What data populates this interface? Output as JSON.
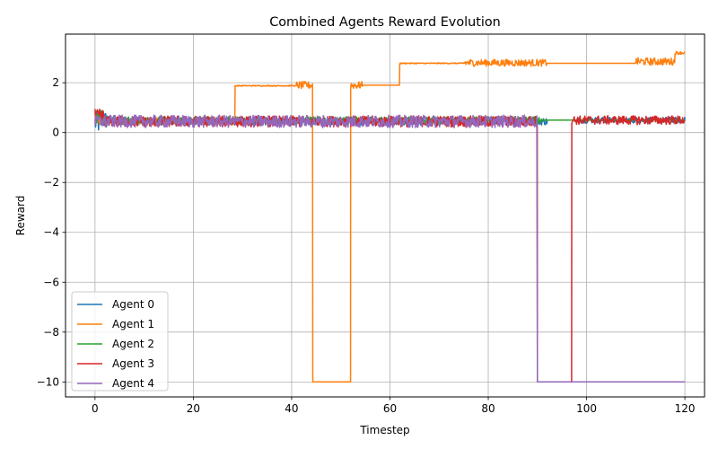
{
  "chart_data": {
    "type": "line",
    "title": "Combined Agents Reward Evolution",
    "xlabel": "Timestep",
    "ylabel": "Reward",
    "xlim": [
      -6,
      124
    ],
    "ylim": [
      -10.6,
      3.95
    ],
    "xticks": [
      0,
      20,
      40,
      60,
      80,
      100,
      120
    ],
    "yticks": [
      -10,
      -8,
      -6,
      -4,
      -2,
      0,
      2
    ],
    "ytick_labels": [
      "−10",
      "−8",
      "−6",
      "−4",
      "−2",
      "0",
      "2"
    ],
    "grid": true,
    "legend_position": "lower-left",
    "series": [
      {
        "name": "Agent 0",
        "color": "#1f77b4",
        "segments": [
          {
            "x0": 0,
            "x1": 1,
            "base": 0.4,
            "noise": 0.45
          },
          {
            "x0": 1,
            "x1": 3,
            "base": 0.5,
            "noise": 0.35
          },
          {
            "x0": 3,
            "x1": 92,
            "base": 0.45,
            "noise": 0.15
          },
          {
            "x0": 92,
            "x1": 98,
            "base": 0.5,
            "noise": 0.0
          },
          {
            "x0": 98,
            "x1": 120,
            "base": 0.5,
            "noise": 0.12
          }
        ]
      },
      {
        "name": "Agent 1",
        "color": "#ff7f0e",
        "segments": [
          {
            "x0": 0,
            "x1": 28.5,
            "base": 0.45,
            "noise": 0.15
          },
          {
            "x0": 28.5,
            "x1": 41,
            "base": 1.88,
            "noise": 0.02
          },
          {
            "x0": 41,
            "x1": 44.3,
            "base": 1.9,
            "noise": 0.15
          },
          {
            "x0": 44.3,
            "x1": 52,
            "base": -10.0,
            "noise": 0.0
          },
          {
            "x0": 52,
            "x1": 54.5,
            "base": 1.9,
            "noise": 0.15
          },
          {
            "x0": 54.5,
            "x1": 62,
            "base": 1.9,
            "noise": 0.0
          },
          {
            "x0": 62,
            "x1": 75,
            "base": 2.78,
            "noise": 0.02
          },
          {
            "x0": 75,
            "x1": 92,
            "base": 2.8,
            "noise": 0.14
          },
          {
            "x0": 92,
            "x1": 110,
            "base": 2.78,
            "noise": 0.0
          },
          {
            "x0": 110,
            "x1": 118,
            "base": 2.85,
            "noise": 0.15
          },
          {
            "x0": 118,
            "x1": 120,
            "base": 3.2,
            "noise": 0.06
          }
        ]
      },
      {
        "name": "Agent 2",
        "color": "#2ca02c",
        "segments": [
          {
            "x0": 0,
            "x1": 2,
            "base": 0.6,
            "noise": 0.3
          },
          {
            "x0": 2,
            "x1": 91,
            "base": 0.5,
            "noise": 0.14
          },
          {
            "x0": 91,
            "x1": 120,
            "base": 0.5,
            "noise": 0.0
          }
        ]
      },
      {
        "name": "Agent 3",
        "color": "#d62728",
        "segments": [
          {
            "x0": 0,
            "x1": 2,
            "base": 0.6,
            "noise": 0.35
          },
          {
            "x0": 2,
            "x1": 90,
            "base": 0.45,
            "noise": 0.22
          },
          {
            "x0": 90,
            "x1": 97,
            "base": -10.0,
            "noise": 0.0
          },
          {
            "x0": 97,
            "x1": 120,
            "base": 0.5,
            "noise": 0.18
          }
        ]
      },
      {
        "name": "Agent 4",
        "color": "#9467bd",
        "segments": [
          {
            "x0": 0,
            "x1": 90,
            "base": 0.45,
            "noise": 0.25
          },
          {
            "x0": 90,
            "x1": 120,
            "base": -10.0,
            "noise": 0.0
          }
        ]
      }
    ]
  }
}
